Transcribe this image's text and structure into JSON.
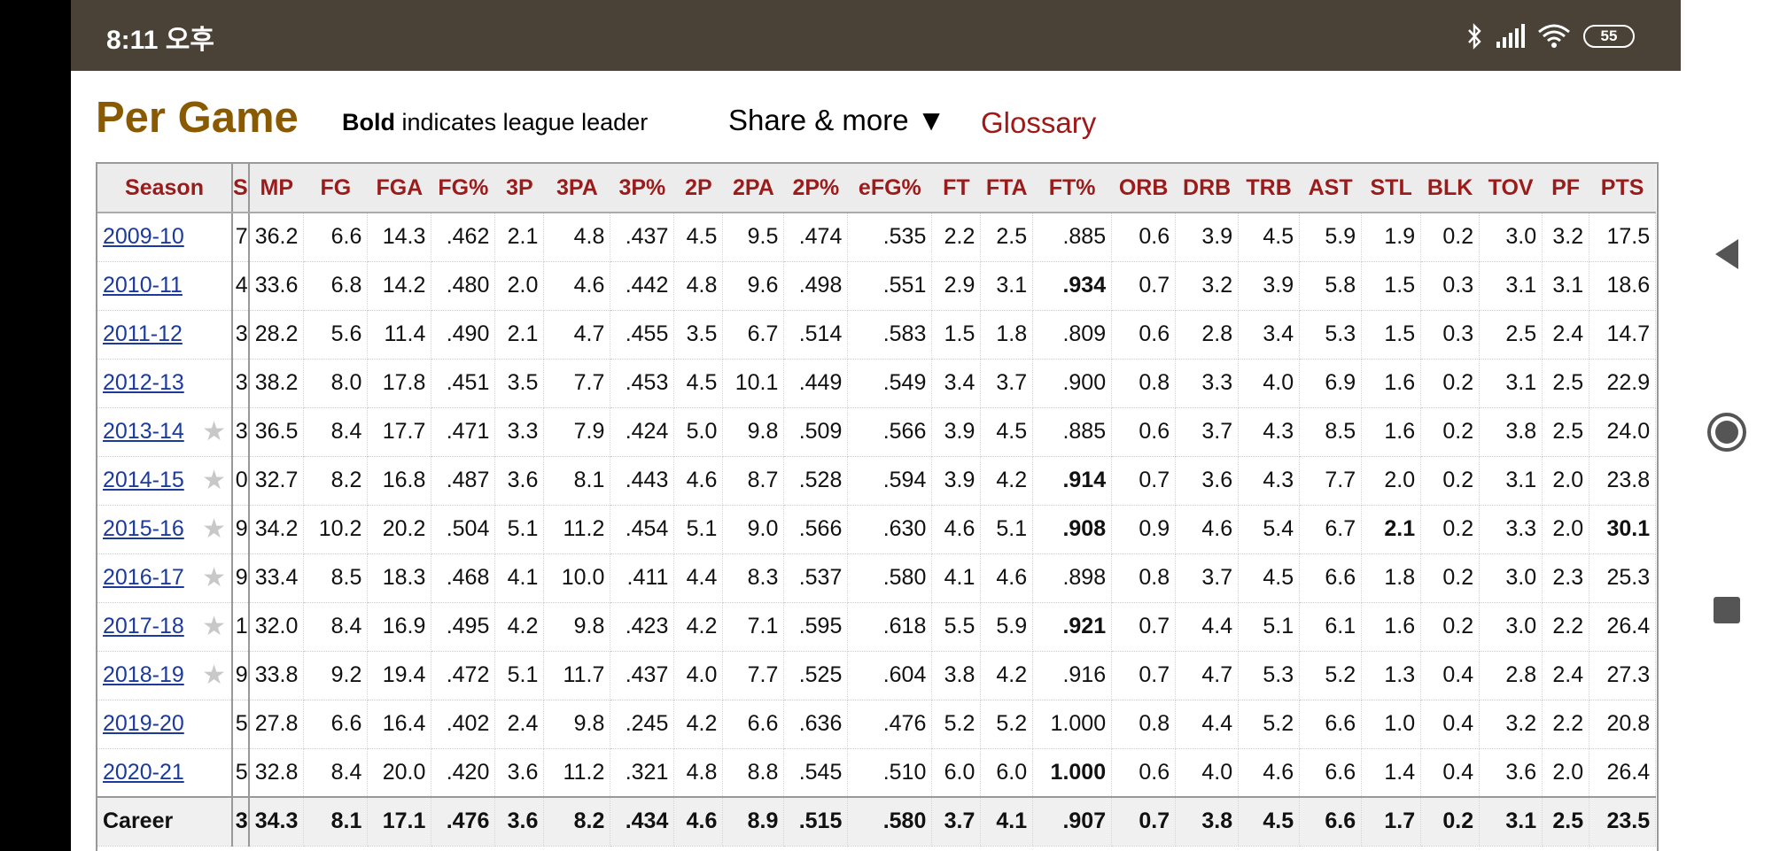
{
  "status_bar": {
    "time": "8:11 오후",
    "battery": "55"
  },
  "heading": {
    "title": "Per Game",
    "bold_note_bold": "Bold",
    "bold_note_rest": " indicates league leader",
    "share_label": "Share & more ▼",
    "glossary_label": "Glossary"
  },
  "table": {
    "columns": [
      "Season",
      "MP",
      "FG",
      "FGA",
      "FG%",
      "3P",
      "3PA",
      "3P%",
      "2P",
      "2PA",
      "2P%",
      "eFG%",
      "FT",
      "FTA",
      "FT%",
      "ORB",
      "DRB",
      "TRB",
      "AST",
      "STL",
      "BLK",
      "TOV",
      "PF",
      "PTS"
    ],
    "clipped_header": "S",
    "rows": [
      {
        "season": "2009-10",
        "star": false,
        "clip": "7",
        "stats": [
          "36.2",
          "6.6",
          "14.3",
          ".462",
          "2.1",
          "4.8",
          ".437",
          "4.5",
          "9.5",
          ".474",
          ".535",
          "2.2",
          "2.5",
          ".885",
          "0.6",
          "3.9",
          "4.5",
          "5.9",
          "1.9",
          "0.2",
          "3.0",
          "3.2",
          "17.5"
        ],
        "bold": []
      },
      {
        "season": "2010-11",
        "star": false,
        "clip": "4",
        "stats": [
          "33.6",
          "6.8",
          "14.2",
          ".480",
          "2.0",
          "4.6",
          ".442",
          "4.8",
          "9.6",
          ".498",
          ".551",
          "2.9",
          "3.1",
          ".934",
          "0.7",
          "3.2",
          "3.9",
          "5.8",
          "1.5",
          "0.3",
          "3.1",
          "3.1",
          "18.6"
        ],
        "bold": [
          "FT%"
        ]
      },
      {
        "season": "2011-12",
        "star": false,
        "clip": "3",
        "stats": [
          "28.2",
          "5.6",
          "11.4",
          ".490",
          "2.1",
          "4.7",
          ".455",
          "3.5",
          "6.7",
          ".514",
          ".583",
          "1.5",
          "1.8",
          ".809",
          "0.6",
          "2.8",
          "3.4",
          "5.3",
          "1.5",
          "0.3",
          "2.5",
          "2.4",
          "14.7"
        ],
        "bold": []
      },
      {
        "season": "2012-13",
        "star": false,
        "clip": "3",
        "stats": [
          "38.2",
          "8.0",
          "17.8",
          ".451",
          "3.5",
          "7.7",
          ".453",
          "4.5",
          "10.1",
          ".449",
          ".549",
          "3.4",
          "3.7",
          ".900",
          "0.8",
          "3.3",
          "4.0",
          "6.9",
          "1.6",
          "0.2",
          "3.1",
          "2.5",
          "22.9"
        ],
        "bold": []
      },
      {
        "season": "2013-14",
        "star": true,
        "clip": "3",
        "stats": [
          "36.5",
          "8.4",
          "17.7",
          ".471",
          "3.3",
          "7.9",
          ".424",
          "5.0",
          "9.8",
          ".509",
          ".566",
          "3.9",
          "4.5",
          ".885",
          "0.6",
          "3.7",
          "4.3",
          "8.5",
          "1.6",
          "0.2",
          "3.8",
          "2.5",
          "24.0"
        ],
        "bold": []
      },
      {
        "season": "2014-15",
        "star": true,
        "clip": "0",
        "stats": [
          "32.7",
          "8.2",
          "16.8",
          ".487",
          "3.6",
          "8.1",
          ".443",
          "4.6",
          "8.7",
          ".528",
          ".594",
          "3.9",
          "4.2",
          ".914",
          "0.7",
          "3.6",
          "4.3",
          "7.7",
          "2.0",
          "0.2",
          "3.1",
          "2.0",
          "23.8"
        ],
        "bold": [
          "FT%"
        ]
      },
      {
        "season": "2015-16",
        "star": true,
        "clip": "9",
        "stats": [
          "34.2",
          "10.2",
          "20.2",
          ".504",
          "5.1",
          "11.2",
          ".454",
          "5.1",
          "9.0",
          ".566",
          ".630",
          "4.6",
          "5.1",
          ".908",
          "0.9",
          "4.6",
          "5.4",
          "6.7",
          "2.1",
          "0.2",
          "3.3",
          "2.0",
          "30.1"
        ],
        "bold": [
          "FT%",
          "STL",
          "PTS"
        ]
      },
      {
        "season": "2016-17",
        "star": true,
        "clip": "9",
        "stats": [
          "33.4",
          "8.5",
          "18.3",
          ".468",
          "4.1",
          "10.0",
          ".411",
          "4.4",
          "8.3",
          ".537",
          ".580",
          "4.1",
          "4.6",
          ".898",
          "0.8",
          "3.7",
          "4.5",
          "6.6",
          "1.8",
          "0.2",
          "3.0",
          "2.3",
          "25.3"
        ],
        "bold": []
      },
      {
        "season": "2017-18",
        "star": true,
        "clip": "1",
        "stats": [
          "32.0",
          "8.4",
          "16.9",
          ".495",
          "4.2",
          "9.8",
          ".423",
          "4.2",
          "7.1",
          ".595",
          ".618",
          "5.5",
          "5.9",
          ".921",
          "0.7",
          "4.4",
          "5.1",
          "6.1",
          "1.6",
          "0.2",
          "3.0",
          "2.2",
          "26.4"
        ],
        "bold": [
          "FT%"
        ]
      },
      {
        "season": "2018-19",
        "star": true,
        "clip": "9",
        "stats": [
          "33.8",
          "9.2",
          "19.4",
          ".472",
          "5.1",
          "11.7",
          ".437",
          "4.0",
          "7.7",
          ".525",
          ".604",
          "3.8",
          "4.2",
          ".916",
          "0.7",
          "4.7",
          "5.3",
          "5.2",
          "1.3",
          "0.4",
          "2.8",
          "2.4",
          "27.3"
        ],
        "bold": []
      },
      {
        "season": "2019-20",
        "star": false,
        "clip": "5",
        "stats": [
          "27.8",
          "6.6",
          "16.4",
          ".402",
          "2.4",
          "9.8",
          ".245",
          "4.2",
          "6.6",
          ".636",
          ".476",
          "5.2",
          "5.2",
          "1.000",
          "0.8",
          "4.4",
          "5.2",
          "6.6",
          "1.0",
          "0.4",
          "3.2",
          "2.2",
          "20.8"
        ],
        "bold": []
      },
      {
        "season": "2020-21",
        "star": false,
        "clip": "5",
        "stats": [
          "32.8",
          "8.4",
          "20.0",
          ".420",
          "3.6",
          "11.2",
          ".321",
          "4.8",
          "8.8",
          ".545",
          ".510",
          "6.0",
          "6.0",
          "1.000",
          "0.6",
          "4.0",
          "4.6",
          "6.6",
          "1.4",
          "0.4",
          "3.6",
          "2.0",
          "26.4"
        ],
        "bold": [
          "FT%"
        ]
      }
    ],
    "career": {
      "label": "Career",
      "clip": "3",
      "stats": [
        "34.3",
        "8.1",
        "17.1",
        ".476",
        "3.6",
        "8.2",
        ".434",
        "4.6",
        "8.9",
        ".515",
        ".580",
        "3.7",
        "4.1",
        ".907",
        "0.7",
        "3.8",
        "4.5",
        "6.6",
        "1.7",
        "0.2",
        "3.1",
        "2.5",
        "23.5"
      ]
    }
  },
  "nav_buttons": [
    "back-icon",
    "home-icon",
    "recents-icon"
  ],
  "colors": {
    "title": "#8a5a00",
    "header_text": "#9b1b1b",
    "link": "#1b3a9b",
    "status_bar": "#4a4237"
  }
}
